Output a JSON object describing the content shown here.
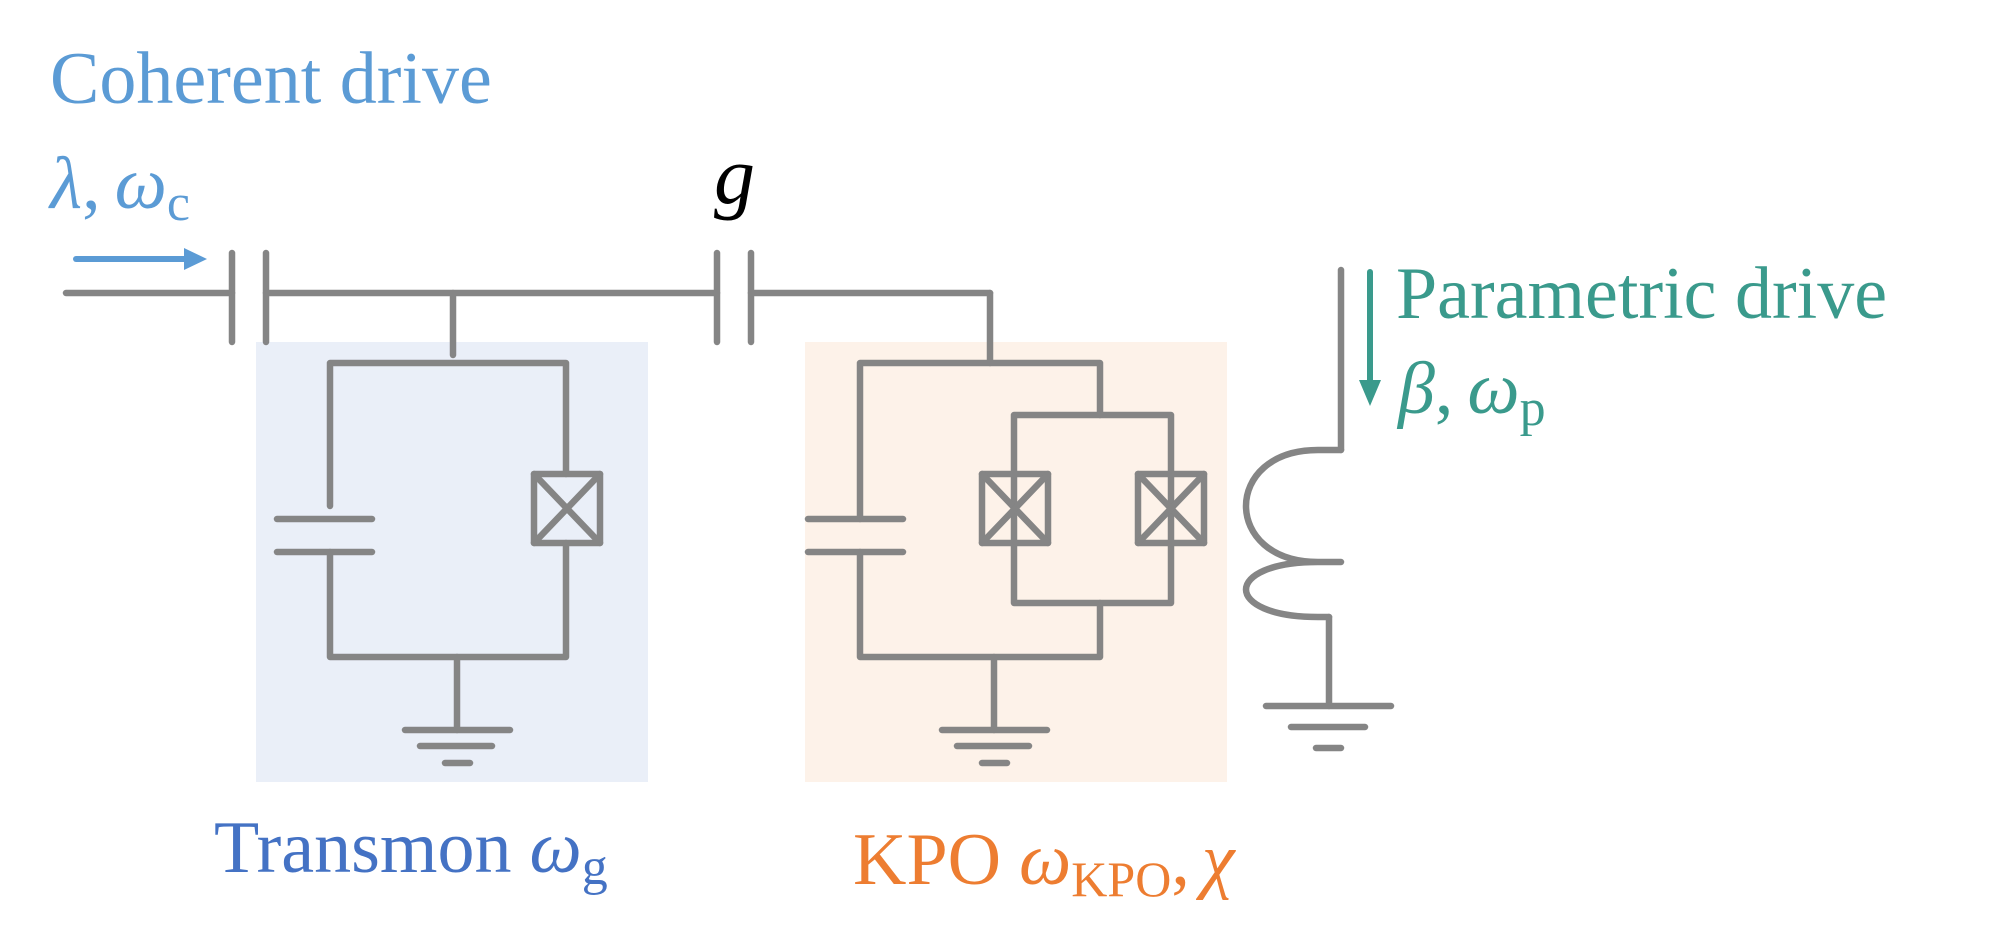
{
  "labels": {
    "coherent_drive_title": "Coherent drive",
    "coherent_drive_params": {
      "lambda": "λ",
      "sep": ",",
      "omega": "ω",
      "sub": "c"
    },
    "coupling": "g",
    "parametric_drive_title": "Parametric drive",
    "parametric_drive_params": {
      "beta": "β",
      "sep": ",",
      "omega": "ω",
      "sub": "p"
    },
    "transmon": {
      "name": "Transmon",
      "omega": "ω",
      "sub": "g"
    },
    "kpo": {
      "name": "KPO",
      "omega": "ω",
      "sub": "KPO",
      "sep": ",",
      "chi": "χ"
    }
  },
  "colors": {
    "coherent": "#5b9bd5",
    "parametric": "#3a9a8c",
    "transmon": "#4472c4",
    "kpo": "#ed7d31",
    "wire": "#858585",
    "transmon_bg": "#eaeff8",
    "kpo_bg": "#fdf2e9",
    "coupling": "#000000"
  }
}
